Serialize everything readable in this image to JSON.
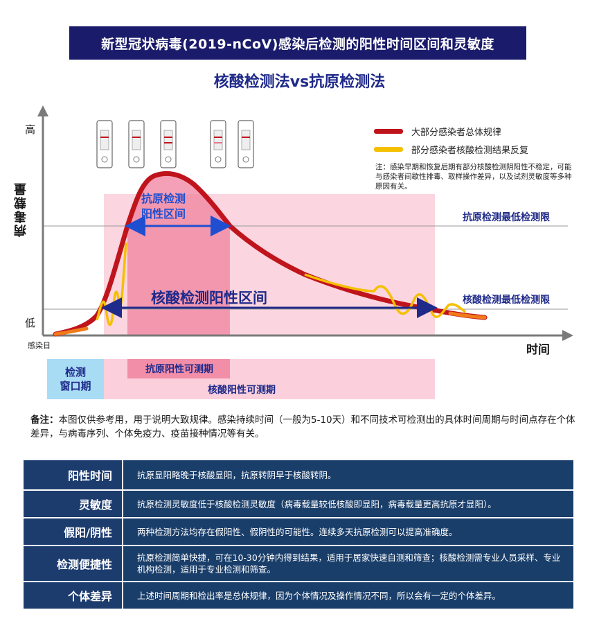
{
  "banner": {
    "title": "新型冠状病毒(2019-nCoV)感染后检测的阳性时间区间和灵敏度"
  },
  "subtitle": "核酸检测法vs抗原检测法",
  "axes": {
    "y_label": "病毒载量",
    "y_high": "高",
    "y_low": "低",
    "x_origin": "感染日",
    "x_label": "时间"
  },
  "legend": {
    "items": [
      {
        "label": "大部分感染者总体规律",
        "color": "#c0141c"
      },
      {
        "label": "部分感染者核酸检测结果反复",
        "color": "#f5c000"
      }
    ],
    "note": "注：感染早期和恢复后期有部分核酸检测阴阳性不稳定，可能与感染者间歇性排毒、取样操作差异，以及试剂灵敏度等多种原因有关。"
  },
  "limits": {
    "antigen": "抗原检测最低检测限",
    "nucleic": "核酸检测最低检测限"
  },
  "ranges": {
    "antigen_line1": "抗原检测",
    "antigen_line2": "阳性区间",
    "nucleic": "核酸检测阳性区间"
  },
  "periods": {
    "window_line1": "检测",
    "window_line2": "窗口期",
    "antigen": "抗原阳性可测期",
    "nucleic": "核酸阳性可测期"
  },
  "remark": {
    "prefix": "备注：",
    "text": "本图仅供参考用，用于说明大致规律。感染持续时间（一般为5-10天）和不同技术可检测出的具体时间周期与时间点存在个体差异，与病毒序列、个体免疫力、疫苗接种情况等有关。"
  },
  "table": {
    "rows": [
      {
        "header": "阳性时间",
        "content": "抗原显阳略晚于核酸显阳，抗原转阴早于核酸转阴。"
      },
      {
        "header": "灵敏度",
        "content": "抗原检测灵敏度低于核酸检测灵敏度（病毒载量较低核酸即显阳，病毒载量更高抗原才显阳）。"
      },
      {
        "header": "假阳/阴性",
        "content": "两种检测方法均存在假阳性、假阴性的可能性。连续多天抗原检测可以提高准确度。"
      },
      {
        "header": "检测便捷性",
        "content": "抗原检测简单快捷，可在10-30分钟内得到结果，适用于居家快速自测和筛查；核酸检测需专业人员采样、专业机构检测，适用于专业检测和筛查。"
      },
      {
        "header": "个体差异",
        "content": "上述时间周期和检出率是总体规律，因为个体情况及操作情况不同，所以会有一定的个体差异。"
      }
    ]
  },
  "colors": {
    "banner": "#1b1b6b",
    "main_curve": "#c0141c",
    "fluctuation_curve": "#f5c000",
    "antigen_region": "#f0829f",
    "nucleic_region": "#fbd0dc",
    "window_period": "#a8dcf5",
    "arrow": "#1f4fd0",
    "table_header": "#1d3c6e"
  }
}
